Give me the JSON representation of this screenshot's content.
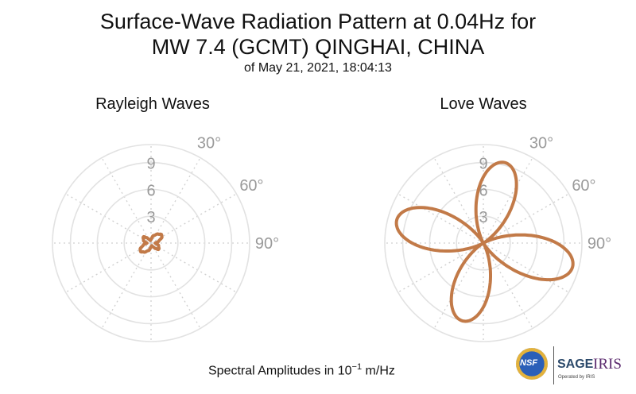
{
  "chart_data": {
    "type": "polar",
    "title": "Surface-Wave Radiation Pattern at 0.04Hz for",
    "title_line2": "MW 7.4 (GCMT) QINGHAI, CHINA",
    "subtitle": "of May 21, 2021, 18:04:13",
    "footer": {
      "prefix": "Spectral Amplitudes in 10",
      "exponent": "−1",
      "suffix": " m/Hz"
    },
    "radial_ticks": [
      "3",
      "6",
      "9"
    ],
    "radial_max": 11,
    "angle_ticks": [
      "30°",
      "60°",
      "90°"
    ],
    "grid": true,
    "line_color": "#c27a48",
    "panels": [
      {
        "title": "Rayleigh Waves",
        "azimuth_deg": [
          0,
          20,
          40,
          50,
          60,
          75,
          90,
          110,
          130,
          140,
          150,
          165,
          180,
          200,
          220,
          230,
          240,
          255,
          270,
          290,
          310,
          320,
          330,
          345
        ],
        "amplitude": [
          0.4,
          0.9,
          1.3,
          1.5,
          1.4,
          0.9,
          0.45,
          0.9,
          1.1,
          0.8,
          0.5,
          0.3,
          0.4,
          0.9,
          1.3,
          1.5,
          1.4,
          0.9,
          0.45,
          0.9,
          1.1,
          0.8,
          0.5,
          0.3
        ]
      },
      {
        "title": "Love Waves",
        "lobe_peaks": {
          "azimuth_deg": [
            15,
            105,
            195,
            285
          ],
          "amplitude": [
            9.3,
            10.3,
            9.0,
            10.0
          ]
        }
      }
    ]
  },
  "logos": {
    "nsf": "NSF",
    "sage": "SAGE",
    "iris": "IRIS",
    "operated": "Operated by IRIS"
  }
}
